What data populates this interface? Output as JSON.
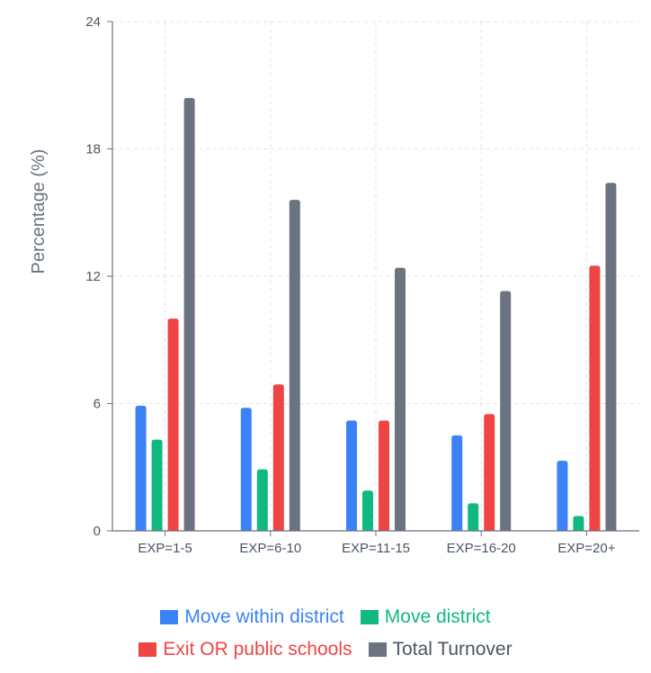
{
  "chart_data": {
    "type": "bar",
    "title": "",
    "xlabel": "",
    "ylabel": "Percentage (%)",
    "ylim": [
      0,
      24
    ],
    "yticks": [
      "0",
      "6",
      "12",
      "18",
      "24"
    ],
    "grid": true,
    "legend_position": "bottom",
    "categories": [
      "EXP=1-5",
      "EXP=6-10",
      "EXP=11-15",
      "EXP=16-20",
      "EXP=20+"
    ],
    "series": [
      {
        "name": "Move within district",
        "color": "#3b82f6",
        "values": [
          5.9,
          5.8,
          5.2,
          4.5,
          3.3
        ]
      },
      {
        "name": "Move district",
        "color": "#10b981",
        "values": [
          4.3,
          2.9,
          1.9,
          1.3,
          0.7
        ]
      },
      {
        "name": "Exit OR public schools",
        "color": "#ef4444",
        "values": [
          10.0,
          6.9,
          5.2,
          5.5,
          12.5
        ]
      },
      {
        "name": "Total Turnover",
        "color": "#6b7280",
        "values": [
          20.4,
          15.6,
          12.4,
          11.3,
          16.4
        ]
      }
    ]
  }
}
